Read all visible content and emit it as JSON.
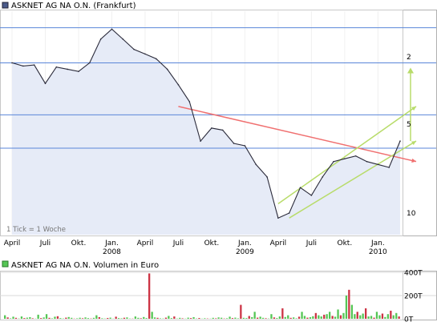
{
  "price_chart": {
    "title": "ASKNET AG NA O.N. (Frankfurt)",
    "tick_note": "1 Tick = 1 Woche",
    "y_tick_labels": [
      "10",
      "5",
      "2"
    ],
    "x_month_labels": [
      "April",
      "Juli",
      "Okt.",
      "Jan.",
      "April",
      "Juli",
      "Okt.",
      "Jan.",
      "April",
      "Juli",
      "Okt.",
      "Jan."
    ],
    "x_year_labels": [
      "2008",
      "2009",
      "2010"
    ],
    "colors": {
      "price_line": "#2a2a3a",
      "area_fill": "#e6ebf7",
      "blue_lines": "#5a86d8",
      "red_trend": "#f07070",
      "green_channel": "#b8dc6a"
    }
  },
  "volume_chart": {
    "title": "ASKNET AG NA O.N. Volumen in Euro",
    "y_tick_labels": [
      "400T",
      "200T",
      "0T"
    ],
    "colors": {
      "up": "#55c655",
      "down": "#cc3344"
    }
  },
  "chart_data": [
    {
      "type": "line",
      "title": "ASKNET AG NA O.N. (Frankfurt)",
      "scale": "log",
      "ylim": [
        1.6,
        16
      ],
      "y_ticks": [
        2,
        5,
        10
      ],
      "x": [
        "2007-04",
        "2007-05",
        "2007-06",
        "2007-07",
        "2007-08",
        "2007-09",
        "2007-10",
        "2007-11",
        "2007-12",
        "2008-01",
        "2008-02",
        "2008-03",
        "2008-04",
        "2008-05",
        "2008-06",
        "2008-07",
        "2008-08",
        "2008-09",
        "2008-10",
        "2008-11",
        "2008-12",
        "2009-01",
        "2009-02",
        "2009-03",
        "2009-04",
        "2009-05",
        "2009-06",
        "2009-07",
        "2009-08",
        "2009-09",
        "2009-10",
        "2009-11",
        "2009-12",
        "2010-01",
        "2010-02",
        "2010-03"
      ],
      "series": [
        {
          "values": [
            9.4,
            9.1,
            9.2,
            7.6,
            9.0,
            8.8,
            8.6,
            9.4,
            12.0,
            13.3,
            12.0,
            10.8,
            10.3,
            9.8,
            8.8,
            7.5,
            6.3,
            4.2,
            4.8,
            4.7,
            4.1,
            4.0,
            3.3,
            2.9,
            1.9,
            2.0,
            2.6,
            2.4,
            2.9,
            3.4,
            3.5,
            3.6,
            3.4,
            3.3,
            3.2,
            4.2
          ]
        }
      ],
      "horizontal_lines": [
        13.5,
        9.4,
        5.5,
        3.9
      ],
      "trend_lines": [
        {
          "color": "red",
          "from": [
            "2008-07",
            6.0
          ],
          "to": [
            "2010-03",
            3.4
          ]
        },
        {
          "color": "green",
          "from": [
            "2009-04",
            2.2
          ],
          "to": [
            "2010-03",
            6.0
          ]
        },
        {
          "color": "green",
          "from": [
            "2009-05",
            1.9
          ],
          "to": [
            "2010-03",
            4.2
          ]
        }
      ],
      "x_month_labels": [
        "April",
        "Juli",
        "Okt.",
        "Jan.",
        "April",
        "Juli",
        "Okt.",
        "Jan.",
        "April",
        "Juli",
        "Okt.",
        "Jan."
      ],
      "x_year_labels": [
        "2008",
        "2009",
        "2010"
      ]
    },
    {
      "type": "bar",
      "title": "ASKNET AG NA O.N. Volumen in Euro",
      "ylim": [
        0,
        400
      ],
      "y_ticks": [
        "0T",
        "200T",
        "400T"
      ],
      "values": [
        30,
        12,
        4,
        18,
        8,
        3,
        20,
        6,
        10,
        14,
        5,
        2,
        35,
        6,
        12,
        40,
        8,
        4,
        18,
        22,
        6,
        3,
        10,
        15,
        8,
        2,
        4,
        9,
        5,
        12,
        6,
        3,
        8,
        30,
        14,
        5,
        3,
        7,
        10,
        2,
        18,
        6,
        4,
        9,
        12,
        3,
        2,
        20,
        8,
        5,
        15,
        6,
        390,
        60,
        12,
        8,
        4,
        3,
        10,
        25,
        6,
        20,
        3,
        8,
        4,
        2,
        10,
        6,
        14,
        3,
        7,
        2,
        5,
        3,
        2,
        8,
        4,
        12,
        9,
        3,
        5,
        18,
        6,
        10,
        4,
        120,
        8,
        6,
        24,
        14,
        60,
        10,
        18,
        8,
        5,
        3,
        40,
        12,
        6,
        20,
        90,
        15,
        30,
        8,
        12,
        4,
        18,
        60,
        25,
        10,
        14,
        22,
        50,
        30,
        20,
        35,
        40,
        60,
        25,
        18,
        80,
        30,
        50,
        200,
        250,
        120,
        40,
        60,
        30,
        45,
        90,
        20,
        25,
        10,
        60,
        30,
        45,
        15,
        40,
        70,
        30,
        50,
        20
      ]
    }
  ]
}
